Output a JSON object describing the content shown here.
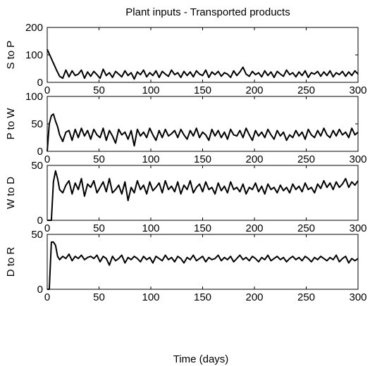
{
  "chart_data": {
    "type": "line",
    "title": "Plant inputs - Transported products",
    "xlabel": "Time (days)",
    "xlim": [
      0,
      300
    ],
    "grid": false,
    "legend": "none",
    "line_color": "#000000",
    "subplots": [
      {
        "ylabel": "S to P",
        "ylim": [
          0,
          200
        ],
        "yticks": [
          "0",
          "100",
          "200"
        ],
        "xticks": [
          "0",
          "50",
          "100",
          "150",
          "200",
          "250",
          "300"
        ],
        "series": [
          {
            "x": [
              0,
              3,
              6,
              9,
              12,
              15,
              18,
              21,
              24,
              27,
              30,
              33,
              36,
              39,
              42,
              45,
              48,
              51,
              54,
              57,
              60,
              63,
              66,
              69,
              72,
              75,
              78,
              81,
              84,
              87,
              90,
              93,
              96,
              99,
              102,
              105,
              108,
              111,
              114,
              117,
              120,
              123,
              126,
              129,
              132,
              135,
              138,
              141,
              144,
              147,
              150,
              153,
              156,
              159,
              162,
              165,
              168,
              171,
              174,
              177,
              180,
              183,
              186,
              189,
              192,
              195,
              198,
              201,
              204,
              207,
              210,
              213,
              216,
              219,
              222,
              225,
              228,
              231,
              234,
              237,
              240,
              243,
              246,
              249,
              252,
              255,
              258,
              261,
              264,
              267,
              270,
              273,
              276,
              279,
              282,
              285,
              288,
              291,
              294,
              297,
              300
            ],
            "y": [
              120,
              95,
              70,
              45,
              22,
              15,
              45,
              20,
              42,
              25,
              30,
              45,
              15,
              38,
              22,
              40,
              28,
              15,
              48,
              25,
              35,
              18,
              40,
              30,
              20,
              42,
              25,
              35,
              12,
              38,
              28,
              45,
              20,
              35,
              25,
              42,
              18,
              40,
              30,
              22,
              45,
              28,
              35,
              18,
              40,
              25,
              38,
              20,
              42,
              30,
              25,
              45,
              18,
              38,
              28,
              40,
              22,
              35,
              30,
              18,
              42,
              25,
              38,
              55,
              30,
              22,
              40,
              28,
              35,
              20,
              42,
              25,
              38,
              18,
              40,
              30,
              22,
              45,
              28,
              35,
              20,
              38,
              25,
              42,
              18,
              35,
              30,
              40,
              22,
              38,
              25,
              42,
              20,
              35,
              28,
              40,
              22,
              38,
              25,
              42,
              30
            ]
          }
        ]
      },
      {
        "ylabel": "P to W",
        "ylim": [
          0,
          100
        ],
        "yticks": [
          "0",
          "50",
          "100"
        ],
        "xticks": [
          "0",
          "50",
          "100",
          "150",
          "200",
          "250",
          "300"
        ],
        "series": [
          {
            "x": [
              0,
              2,
              4,
              6,
              8,
              10,
              12,
              15,
              18,
              21,
              24,
              27,
              30,
              33,
              36,
              39,
              42,
              45,
              48,
              51,
              54,
              57,
              60,
              63,
              66,
              69,
              72,
              75,
              78,
              81,
              84,
              87,
              90,
              93,
              96,
              99,
              102,
              105,
              108,
              111,
              114,
              117,
              120,
              123,
              126,
              129,
              132,
              135,
              138,
              141,
              144,
              147,
              150,
              153,
              156,
              159,
              162,
              165,
              168,
              171,
              174,
              177,
              180,
              183,
              186,
              189,
              192,
              195,
              198,
              201,
              204,
              207,
              210,
              213,
              216,
              219,
              222,
              225,
              228,
              231,
              234,
              237,
              240,
              243,
              246,
              249,
              252,
              255,
              258,
              261,
              264,
              267,
              270,
              273,
              276,
              279,
              282,
              285,
              288,
              291,
              294,
              297,
              300
            ],
            "y": [
              0,
              50,
              65,
              68,
              55,
              45,
              30,
              18,
              35,
              38,
              20,
              40,
              25,
              42,
              28,
              38,
              22,
              40,
              30,
              25,
              42,
              20,
              38,
              28,
              15,
              40,
              30,
              35,
              22,
              38,
              10,
              40,
              28,
              35,
              25,
              42,
              30,
              20,
              38,
              25,
              40,
              28,
              32,
              38,
              25,
              40,
              30,
              22,
              38,
              28,
              42,
              25,
              35,
              30,
              20,
              40,
              28,
              38,
              25,
              35,
              22,
              40,
              30,
              28,
              38,
              25,
              42,
              30,
              20,
              38,
              28,
              35,
              25,
              40,
              30,
              22,
              38,
              28,
              35,
              20,
              30,
              25,
              38,
              28,
              35,
              22,
              40,
              30,
              25,
              38,
              28,
              42,
              30,
              25,
              38,
              28,
              40,
              30,
              35,
              25,
              42,
              30,
              35
            ]
          }
        ]
      },
      {
        "ylabel": "W to D",
        "ylim": [
          0,
          50
        ],
        "yticks": [
          "0",
          "50"
        ],
        "xticks": [
          "0",
          "50",
          "100",
          "150",
          "200",
          "250",
          "300"
        ],
        "series": [
          {
            "x": [
              0,
              2,
              4,
              6,
              8,
              10,
              12,
              15,
              18,
              21,
              24,
              27,
              30,
              33,
              36,
              39,
              42,
              45,
              48,
              51,
              54,
              57,
              60,
              63,
              66,
              69,
              72,
              75,
              78,
              81,
              84,
              87,
              90,
              93,
              96,
              99,
              102,
              105,
              108,
              111,
              114,
              117,
              120,
              123,
              126,
              129,
              132,
              135,
              138,
              141,
              144,
              147,
              150,
              153,
              156,
              159,
              162,
              165,
              168,
              171,
              174,
              177,
              180,
              183,
              186,
              189,
              192,
              195,
              198,
              201,
              204,
              207,
              210,
              213,
              216,
              219,
              222,
              225,
              228,
              231,
              234,
              237,
              240,
              243,
              246,
              249,
              252,
              255,
              258,
              261,
              264,
              267,
              270,
              273,
              276,
              279,
              282,
              285,
              288,
              291,
              294,
              297,
              300
            ],
            "y": [
              0,
              0,
              0,
              35,
              45,
              38,
              28,
              25,
              32,
              36,
              24,
              34,
              28,
              38,
              22,
              33,
              30,
              36,
              25,
              30,
              35,
              26,
              38,
              25,
              28,
              32,
              24,
              35,
              18,
              30,
              25,
              36,
              28,
              32,
              24,
              35,
              27,
              30,
              34,
              25,
              36,
              28,
              31,
              26,
              35,
              24,
              32,
              28,
              36,
              25,
              30,
              33,
              26,
              35,
              28,
              30,
              24,
              34,
              27,
              31,
              25,
              35,
              28,
              30,
              26,
              33,
              24,
              30,
              28,
              34,
              26,
              31,
              24,
              33,
              28,
              30,
              25,
              32,
              27,
              30,
              25,
              33,
              28,
              31,
              26,
              34,
              28,
              30,
              25,
              33,
              29,
              36,
              30,
              34,
              28,
              35,
              30,
              33,
              38,
              30,
              35,
              32,
              36
            ]
          }
        ]
      },
      {
        "ylabel": "D to R",
        "ylim": [
          0,
          50
        ],
        "yticks": [
          "0",
          "50"
        ],
        "xticks": [
          "0",
          "50",
          "100",
          "150",
          "200",
          "250",
          "300"
        ],
        "series": [
          {
            "x": [
              0,
              2,
              4,
              6,
              8,
              10,
              12,
              15,
              18,
              21,
              24,
              27,
              30,
              33,
              36,
              39,
              42,
              45,
              48,
              51,
              54,
              57,
              60,
              63,
              66,
              69,
              72,
              75,
              78,
              81,
              84,
              87,
              90,
              93,
              96,
              99,
              102,
              105,
              108,
              111,
              114,
              117,
              120,
              123,
              126,
              129,
              132,
              135,
              138,
              141,
              144,
              147,
              150,
              153,
              156,
              159,
              162,
              165,
              168,
              171,
              174,
              177,
              180,
              183,
              186,
              189,
              192,
              195,
              198,
              201,
              204,
              207,
              210,
              213,
              216,
              219,
              222,
              225,
              228,
              231,
              234,
              237,
              240,
              243,
              246,
              249,
              252,
              255,
              258,
              261,
              264,
              267,
              270,
              273,
              276,
              279,
              282,
              285,
              288,
              291,
              294,
              297,
              300
            ],
            "y": [
              0,
              0,
              43,
              43,
              40,
              30,
              27,
              30,
              28,
              32,
              26,
              30,
              28,
              31,
              27,
              29,
              30,
              28,
              31,
              25,
              30,
              28,
              22,
              30,
              26,
              28,
              31,
              24,
              29,
              27,
              30,
              28,
              25,
              30,
              27,
              29,
              24,
              30,
              28,
              26,
              31,
              27,
              29,
              25,
              30,
              28,
              24,
              29,
              27,
              31,
              26,
              28,
              30,
              25,
              29,
              27,
              28,
              31,
              26,
              29,
              27,
              30,
              25,
              28,
              31,
              27,
              29,
              26,
              30,
              28,
              25,
              29,
              27,
              31,
              26,
              28,
              30,
              27,
              29,
              25,
              28,
              30,
              27,
              29,
              26,
              30,
              28,
              25,
              29,
              27,
              30,
              28,
              26,
              29,
              27,
              31,
              25,
              28,
              30,
              24,
              28,
              26,
              28
            ]
          }
        ]
      }
    ]
  }
}
